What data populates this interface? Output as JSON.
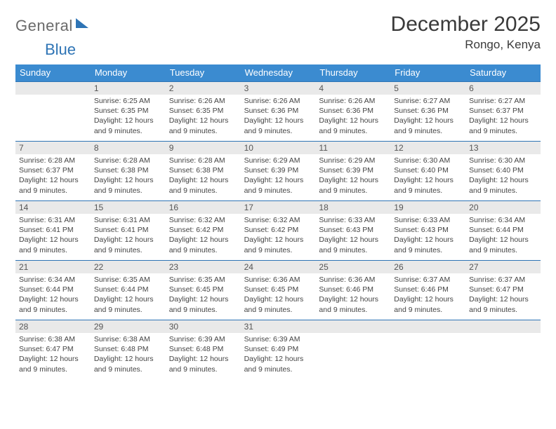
{
  "logo": {
    "word1": "General",
    "word2": "Blue"
  },
  "header": {
    "month": "December 2025",
    "location": "Rongo, Kenya"
  },
  "colors": {
    "header_bg": "#3b8bd0",
    "rule": "#2e74b5",
    "daynum_bg": "#e9e9e9",
    "text": "#404040"
  },
  "dayNames": [
    "Sunday",
    "Monday",
    "Tuesday",
    "Wednesday",
    "Thursday",
    "Friday",
    "Saturday"
  ],
  "weeks": [
    [
      {
        "n": "",
        "sr": "",
        "ss": "",
        "dl": ""
      },
      {
        "n": "1",
        "sr": "6:25 AM",
        "ss": "6:35 PM",
        "dl": "12 hours and 9 minutes."
      },
      {
        "n": "2",
        "sr": "6:26 AM",
        "ss": "6:35 PM",
        "dl": "12 hours and 9 minutes."
      },
      {
        "n": "3",
        "sr": "6:26 AM",
        "ss": "6:36 PM",
        "dl": "12 hours and 9 minutes."
      },
      {
        "n": "4",
        "sr": "6:26 AM",
        "ss": "6:36 PM",
        "dl": "12 hours and 9 minutes."
      },
      {
        "n": "5",
        "sr": "6:27 AM",
        "ss": "6:36 PM",
        "dl": "12 hours and 9 minutes."
      },
      {
        "n": "6",
        "sr": "6:27 AM",
        "ss": "6:37 PM",
        "dl": "12 hours and 9 minutes."
      }
    ],
    [
      {
        "n": "7",
        "sr": "6:28 AM",
        "ss": "6:37 PM",
        "dl": "12 hours and 9 minutes."
      },
      {
        "n": "8",
        "sr": "6:28 AM",
        "ss": "6:38 PM",
        "dl": "12 hours and 9 minutes."
      },
      {
        "n": "9",
        "sr": "6:28 AM",
        "ss": "6:38 PM",
        "dl": "12 hours and 9 minutes."
      },
      {
        "n": "10",
        "sr": "6:29 AM",
        "ss": "6:39 PM",
        "dl": "12 hours and 9 minutes."
      },
      {
        "n": "11",
        "sr": "6:29 AM",
        "ss": "6:39 PM",
        "dl": "12 hours and 9 minutes."
      },
      {
        "n": "12",
        "sr": "6:30 AM",
        "ss": "6:40 PM",
        "dl": "12 hours and 9 minutes."
      },
      {
        "n": "13",
        "sr": "6:30 AM",
        "ss": "6:40 PM",
        "dl": "12 hours and 9 minutes."
      }
    ],
    [
      {
        "n": "14",
        "sr": "6:31 AM",
        "ss": "6:41 PM",
        "dl": "12 hours and 9 minutes."
      },
      {
        "n": "15",
        "sr": "6:31 AM",
        "ss": "6:41 PM",
        "dl": "12 hours and 9 minutes."
      },
      {
        "n": "16",
        "sr": "6:32 AM",
        "ss": "6:42 PM",
        "dl": "12 hours and 9 minutes."
      },
      {
        "n": "17",
        "sr": "6:32 AM",
        "ss": "6:42 PM",
        "dl": "12 hours and 9 minutes."
      },
      {
        "n": "18",
        "sr": "6:33 AM",
        "ss": "6:43 PM",
        "dl": "12 hours and 9 minutes."
      },
      {
        "n": "19",
        "sr": "6:33 AM",
        "ss": "6:43 PM",
        "dl": "12 hours and 9 minutes."
      },
      {
        "n": "20",
        "sr": "6:34 AM",
        "ss": "6:44 PM",
        "dl": "12 hours and 9 minutes."
      }
    ],
    [
      {
        "n": "21",
        "sr": "6:34 AM",
        "ss": "6:44 PM",
        "dl": "12 hours and 9 minutes."
      },
      {
        "n": "22",
        "sr": "6:35 AM",
        "ss": "6:44 PM",
        "dl": "12 hours and 9 minutes."
      },
      {
        "n": "23",
        "sr": "6:35 AM",
        "ss": "6:45 PM",
        "dl": "12 hours and 9 minutes."
      },
      {
        "n": "24",
        "sr": "6:36 AM",
        "ss": "6:45 PM",
        "dl": "12 hours and 9 minutes."
      },
      {
        "n": "25",
        "sr": "6:36 AM",
        "ss": "6:46 PM",
        "dl": "12 hours and 9 minutes."
      },
      {
        "n": "26",
        "sr": "6:37 AM",
        "ss": "6:46 PM",
        "dl": "12 hours and 9 minutes."
      },
      {
        "n": "27",
        "sr": "6:37 AM",
        "ss": "6:47 PM",
        "dl": "12 hours and 9 minutes."
      }
    ],
    [
      {
        "n": "28",
        "sr": "6:38 AM",
        "ss": "6:47 PM",
        "dl": "12 hours and 9 minutes."
      },
      {
        "n": "29",
        "sr": "6:38 AM",
        "ss": "6:48 PM",
        "dl": "12 hours and 9 minutes."
      },
      {
        "n": "30",
        "sr": "6:39 AM",
        "ss": "6:48 PM",
        "dl": "12 hours and 9 minutes."
      },
      {
        "n": "31",
        "sr": "6:39 AM",
        "ss": "6:49 PM",
        "dl": "12 hours and 9 minutes."
      },
      {
        "n": "",
        "sr": "",
        "ss": "",
        "dl": ""
      },
      {
        "n": "",
        "sr": "",
        "ss": "",
        "dl": ""
      },
      {
        "n": "",
        "sr": "",
        "ss": "",
        "dl": ""
      }
    ]
  ],
  "labels": {
    "sunrise": "Sunrise: ",
    "sunset": "Sunset: ",
    "daylight": "Daylight: "
  }
}
